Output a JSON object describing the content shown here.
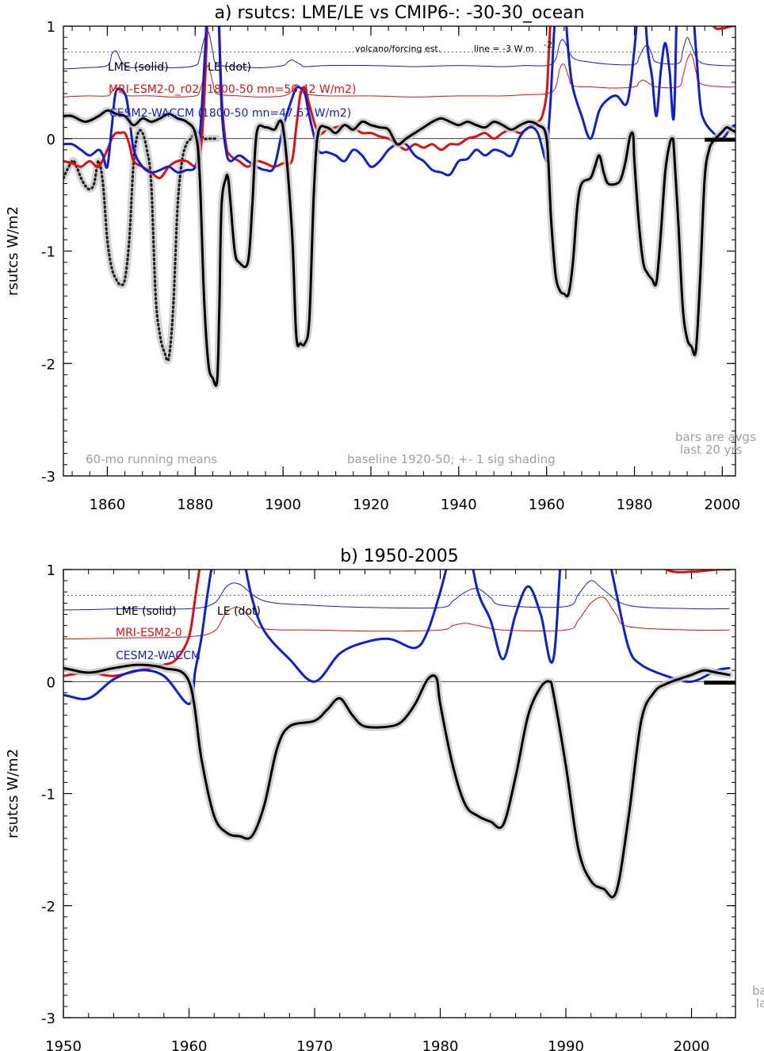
{
  "colors": {
    "lme": "#000000",
    "mri": "#e01010",
    "cesm": "#1020d0",
    "grey": "#a0a0a0",
    "spread": "#c8c8c8"
  },
  "chart_data": [
    {
      "type": "line",
      "title": "a) rsutcs: LME/LE vs CMIP6-: -30-30_ocean",
      "ylabel": "rsutcs W/m2",
      "xlim": [
        1850,
        2003
      ],
      "ylim": [
        -3,
        1
      ],
      "xticks": [
        1860,
        1880,
        1900,
        1920,
        1940,
        1960,
        1980,
        2000
      ],
      "yticks": [
        1,
        0,
        -1,
        -2,
        -3
      ],
      "dashed_line_y": 0.77,
      "legend": [
        "LME (solid)",
        "LE (dot)",
        "MRI-ESM2-0_r02 (1800-50 mn=50.42 W/m2)",
        "CESM2-WACCM (1800-50 mn=47.67 W/m2)"
      ],
      "annotations": {
        "volcano": "volcano/forcing est.",
        "line_note": "line = -3 W m",
        "line_note_sup": "-2",
        "running": "60-mo running means",
        "baseline": "baseline 1920-50; +- 1 sig shading",
        "bars_1": "bars are avgs",
        "bars_2": "last 20 yrs"
      },
      "series": [
        {
          "name": "LME (solid)",
          "x": [
            1850,
            1852,
            1855,
            1858,
            1860,
            1862,
            1864,
            1866,
            1868,
            1870,
            1872,
            1874,
            1876,
            1878,
            1880,
            1881,
            1882,
            1883,
            1884,
            1885,
            1885.5,
            1886,
            1887,
            1887.5,
            1888,
            1889,
            1890,
            1892,
            1893,
            1894,
            1896,
            1898,
            1900,
            1902,
            1903,
            1904,
            1905,
            1906,
            1907,
            1908,
            1910,
            1912,
            1914,
            1916,
            1918,
            1920,
            1922,
            1924,
            1926,
            1928,
            1930,
            1932,
            1934,
            1936,
            1938,
            1940,
            1942,
            1944,
            1946,
            1948,
            1950,
            1952,
            1954,
            1956,
            1958,
            1960,
            1961,
            1962,
            1963,
            1964,
            1965,
            1966,
            1967,
            1968,
            1970,
            1971,
            1972,
            1973,
            1974,
            1976,
            1977,
            1978,
            1979,
            1979.7,
            1980,
            1981,
            1982,
            1983,
            1984,
            1985,
            1986,
            1987,
            1988,
            1988.7,
            1989,
            1990,
            1991,
            1992,
            1993,
            1994,
            1995,
            1996,
            1997,
            1998,
            2000,
            2001,
            2002,
            2003
          ],
          "y": [
            0.2,
            0.2,
            0.15,
            0.2,
            0.25,
            0.22,
            0.2,
            0.12,
            0.18,
            0.15,
            0.18,
            0.22,
            0.18,
            0.15,
            0.05,
            -0.3,
            -1.4,
            -2.0,
            -2.13,
            -2.15,
            -1.5,
            -0.6,
            -0.35,
            -0.35,
            -0.55,
            -1.0,
            -1.1,
            -1.1,
            -0.6,
            0.05,
            0.1,
            0.08,
            0.1,
            -0.8,
            -1.75,
            -1.82,
            -1.82,
            -1.6,
            -0.5,
            0.05,
            0.1,
            0.05,
            0.12,
            0.08,
            0.15,
            0.12,
            0.1,
            0.08,
            -0.05,
            0.0,
            0.05,
            0.1,
            0.15,
            0.18,
            0.15,
            0.12,
            0.15,
            0.12,
            0.1,
            0.15,
            0.12,
            0.08,
            0.12,
            0.15,
            0.12,
            0.0,
            -0.7,
            -1.2,
            -1.35,
            -1.38,
            -1.38,
            -1.1,
            -0.6,
            -0.4,
            -0.35,
            -0.25,
            -0.15,
            -0.3,
            -0.4,
            -0.4,
            -0.35,
            -0.2,
            0.02,
            0.03,
            -0.2,
            -0.75,
            -1.1,
            -1.2,
            -1.25,
            -1.28,
            -0.85,
            -0.3,
            -0.05,
            0.0,
            -0.1,
            -0.75,
            -1.5,
            -1.78,
            -1.85,
            -1.88,
            -1.2,
            -0.35,
            -0.1,
            -0.02,
            0.06,
            0.1,
            0.08,
            0.06
          ]
        },
        {
          "name": "LE (dot)",
          "x": [
            1850,
            1852,
            1853,
            1854,
            1855,
            1856,
            1857,
            1858,
            1859,
            1860,
            1861,
            1862,
            1863,
            1864,
            1865,
            1866,
            1867,
            1868,
            1869,
            1870,
            1871,
            1872,
            1873,
            1874,
            1875,
            1876,
            1877,
            1878,
            1879,
            1880,
            1881,
            1882,
            1883,
            1884,
            1885
          ],
          "y": [
            -0.35,
            -0.2,
            -0.25,
            -0.35,
            -0.42,
            -0.45,
            -0.4,
            -0.2,
            -0.4,
            -0.9,
            -1.15,
            -1.25,
            -1.3,
            -1.25,
            -0.9,
            -0.2,
            0.05,
            0.05,
            -0.1,
            -0.4,
            -1.4,
            -1.75,
            -1.9,
            -1.95,
            -1.5,
            -0.6,
            -0.2,
            -0.05,
            0.0,
            0.05,
            0.05,
            0.0,
            0.0,
            0.0,
            0.0
          ]
        },
        {
          "name": "MRI-ESM2-0",
          "x": [
            1850,
            1852,
            1854,
            1856,
            1858,
            1860,
            1861,
            1862,
            1863,
            1864,
            1865,
            1866,
            1868,
            1870,
            1872,
            1874,
            1876,
            1878,
            1880,
            1881,
            1882,
            1883,
            1884,
            1885,
            1886,
            1887,
            1888,
            1890,
            1892,
            1894,
            1896,
            1898,
            1900,
            1902,
            1903,
            1904,
            1905,
            1906,
            1908,
            1910,
            1912,
            1914,
            1916,
            1918,
            1920,
            1922,
            1924,
            1926,
            1928,
            1930,
            1932,
            1934,
            1936,
            1938,
            1940,
            1942,
            1944,
            1946,
            1948,
            1950,
            1952,
            1954,
            1956,
            1958,
            1959,
            1960,
            1960.5,
            1961,
            1962,
            1963,
            1964,
            1966,
            1968,
            1970,
            1972,
            1974,
            1976,
            1978,
            1980,
            1982,
            1984,
            1986,
            1988,
            1990,
            1992,
            1994,
            1996,
            1998,
            2000,
            2002,
            2003
          ],
          "y": [
            -0.2,
            -0.22,
            -0.25,
            -0.2,
            -0.25,
            -0.1,
            0.0,
            0.05,
            0.05,
            0.05,
            -0.05,
            -0.2,
            -0.25,
            -0.3,
            -0.35,
            -0.25,
            -0.2,
            -0.2,
            -0.25,
            -0.2,
            0.3,
            1.2,
            1.6,
            1.5,
            0.4,
            -0.05,
            -0.15,
            -0.2,
            -0.25,
            -0.2,
            -0.22,
            -0.25,
            -0.22,
            -0.2,
            0.1,
            0.4,
            0.45,
            0.3,
            0.05,
            0.08,
            0.1,
            0.12,
            0.1,
            0.05,
            0.05,
            0.02,
            0.0,
            -0.05,
            -0.1,
            -0.05,
            -0.08,
            -0.05,
            -0.1,
            -0.05,
            -0.05,
            0.0,
            0.02,
            0.05,
            0.0,
            0.05,
            0.08,
            0.05,
            0.1,
            0.15,
            0.2,
            0.4,
            0.75,
            1.1,
            1.5,
            1.6,
            1.5,
            1.4,
            1.25,
            1.5,
            1.45,
            1.6,
            1.5,
            1.4,
            1.3,
            1.5,
            1.45,
            1.4,
            1.55,
            1.35,
            1.3,
            1.2,
            1.2,
            1.0,
            0.98,
            1.0,
            1.0
          ]
        },
        {
          "name": "CESM2-WACCM",
          "x": [
            1850,
            1852,
            1854,
            1856,
            1858,
            1859,
            1860,
            1861,
            1862,
            1864,
            1865,
            1866,
            1868,
            1870,
            1872,
            1874,
            1876,
            1878,
            1880,
            1881,
            1882,
            1883,
            1884,
            1885,
            1886,
            1887,
            1888,
            1890,
            1892,
            1894,
            1896,
            1898,
            1900,
            1902,
            1903,
            1904,
            1905,
            1906,
            1908,
            1910,
            1912,
            1914,
            1916,
            1918,
            1920,
            1922,
            1924,
            1926,
            1928,
            1930,
            1932,
            1934,
            1936,
            1938,
            1940,
            1942,
            1944,
            1946,
            1948,
            1950,
            1952,
            1954,
            1956,
            1958,
            1960,
            1960.5,
            1961,
            1961.5,
            1962,
            1963,
            1964,
            1965,
            1966,
            1968,
            1970,
            1972,
            1974,
            1976,
            1978,
            1979,
            1980,
            1981,
            1982,
            1983,
            1984,
            1985,
            1986,
            1987,
            1988,
            1989,
            1990,
            1992,
            1993,
            1994,
            1995,
            1996,
            1998,
            2000,
            2002,
            2003
          ],
          "y": [
            -0.05,
            -0.05,
            -0.1,
            -0.15,
            -0.1,
            -0.15,
            -0.25,
            0.1,
            0.42,
            0.4,
            0.2,
            -0.1,
            -0.25,
            -0.3,
            -0.28,
            -0.25,
            -0.3,
            -0.28,
            -0.25,
            0.0,
            0.6,
            1.3,
            1.5,
            1.45,
            0.3,
            -0.1,
            -0.2,
            -0.15,
            -0.2,
            -0.25,
            -0.28,
            -0.25,
            0.1,
            0.35,
            0.45,
            0.45,
            0.4,
            0.2,
            -0.1,
            -0.12,
            -0.15,
            -0.2,
            -0.1,
            -0.15,
            -0.25,
            -0.2,
            -0.1,
            -0.05,
            -0.05,
            -0.15,
            -0.2,
            -0.28,
            -0.3,
            -0.32,
            -0.2,
            -0.18,
            -0.1,
            -0.15,
            -0.1,
            -0.12,
            -0.15,
            0.02,
            0.1,
            0.05,
            -0.2,
            0.1,
            0.4,
            0.8,
            1.1,
            1.3,
            1.25,
            0.75,
            0.45,
            0.2,
            0.0,
            0.25,
            0.35,
            0.38,
            0.3,
            0.45,
            0.8,
            1.2,
            1.3,
            0.8,
            0.55,
            0.2,
            0.6,
            0.85,
            0.6,
            0.2,
            1.5,
            1.5,
            1.3,
            0.8,
            0.3,
            0.15,
            0.05,
            0.0,
            0.1,
            0.12
          ]
        },
        {
          "name": "CESM2-WACCM volcano est.",
          "x": [
            1850,
            1855,
            1860,
            1861,
            1862,
            1863,
            1864,
            1865,
            1870,
            1875,
            1880,
            1881,
            1882,
            1883,
            1884,
            1885,
            1890,
            1895,
            1900,
            1901,
            1902,
            1903,
            1904,
            1905,
            1910,
            1920,
            1930,
            1940,
            1950,
            1955,
            1960,
            1962,
            1963,
            1964,
            1966,
            1970,
            1975,
            1980,
            1981,
            1982,
            1983,
            1984,
            1985,
            1990,
            1991,
            1992,
            1993,
            1995,
            2000,
            2003
          ],
          "y": [
            0.62,
            0.63,
            0.65,
            0.75,
            0.78,
            0.7,
            0.65,
            0.63,
            0.64,
            0.63,
            0.65,
            0.72,
            0.88,
            0.95,
            0.78,
            0.66,
            0.64,
            0.63,
            0.65,
            0.68,
            0.7,
            0.68,
            0.66,
            0.64,
            0.65,
            0.65,
            0.64,
            0.65,
            0.64,
            0.65,
            0.65,
            0.7,
            0.85,
            0.87,
            0.72,
            0.68,
            0.66,
            0.66,
            0.72,
            0.8,
            0.83,
            0.75,
            0.68,
            0.67,
            0.78,
            0.9,
            0.82,
            0.68,
            0.65,
            0.65
          ]
        },
        {
          "name": "MRI-ESM2-0 volcano est.",
          "x": [
            1850,
            1855,
            1860,
            1861,
            1862,
            1863,
            1864,
            1865,
            1870,
            1875,
            1880,
            1881,
            1882,
            1883,
            1884,
            1885,
            1890,
            1895,
            1900,
            1902,
            1903,
            1904,
            1905,
            1910,
            1920,
            1930,
            1940,
            1950,
            1955,
            1960,
            1962,
            1963,
            1964,
            1965,
            1966,
            1970,
            1975,
            1980,
            1981,
            1982,
            1983,
            1985,
            1990,
            1991,
            1992,
            1993,
            1994,
            1995,
            2000,
            2003
          ],
          "y": [
            0.37,
            0.38,
            0.38,
            0.42,
            0.45,
            0.42,
            0.39,
            0.38,
            0.38,
            0.37,
            0.38,
            0.42,
            0.55,
            0.65,
            0.5,
            0.4,
            0.38,
            0.37,
            0.38,
            0.42,
            0.48,
            0.45,
            0.4,
            0.38,
            0.38,
            0.37,
            0.38,
            0.38,
            0.39,
            0.4,
            0.45,
            0.62,
            0.66,
            0.55,
            0.47,
            0.46,
            0.45,
            0.46,
            0.5,
            0.52,
            0.5,
            0.46,
            0.46,
            0.55,
            0.7,
            0.75,
            0.6,
            0.49,
            0.46,
            0.46
          ]
        }
      ],
      "bars": [
        {
          "color": "black",
          "x": [
            1996,
            2003
          ],
          "y": -0.01
        }
      ]
    },
    {
      "type": "line",
      "title": "b) 1950-2005",
      "ylabel": "rsutcs W/m2",
      "xlim": [
        1950,
        2003.5
      ],
      "ylim": [
        -3,
        1
      ],
      "xticks": [
        1950,
        1960,
        1970,
        1980,
        1990,
        2000
      ],
      "yticks": [
        1,
        0,
        -1,
        -2,
        -3
      ],
      "dashed_line_y": 0.77,
      "legend": [
        "LME (solid)",
        "LE (dot)",
        "MRI-ESM2-0",
        "CESM2-WACCM"
      ],
      "annotations": {
        "bars_1": "ba",
        "bars_2": "la"
      },
      "bars": [
        {
          "color": "black",
          "x": [
            2001,
            2003.5
          ],
          "y": -0.01
        }
      ]
    }
  ]
}
